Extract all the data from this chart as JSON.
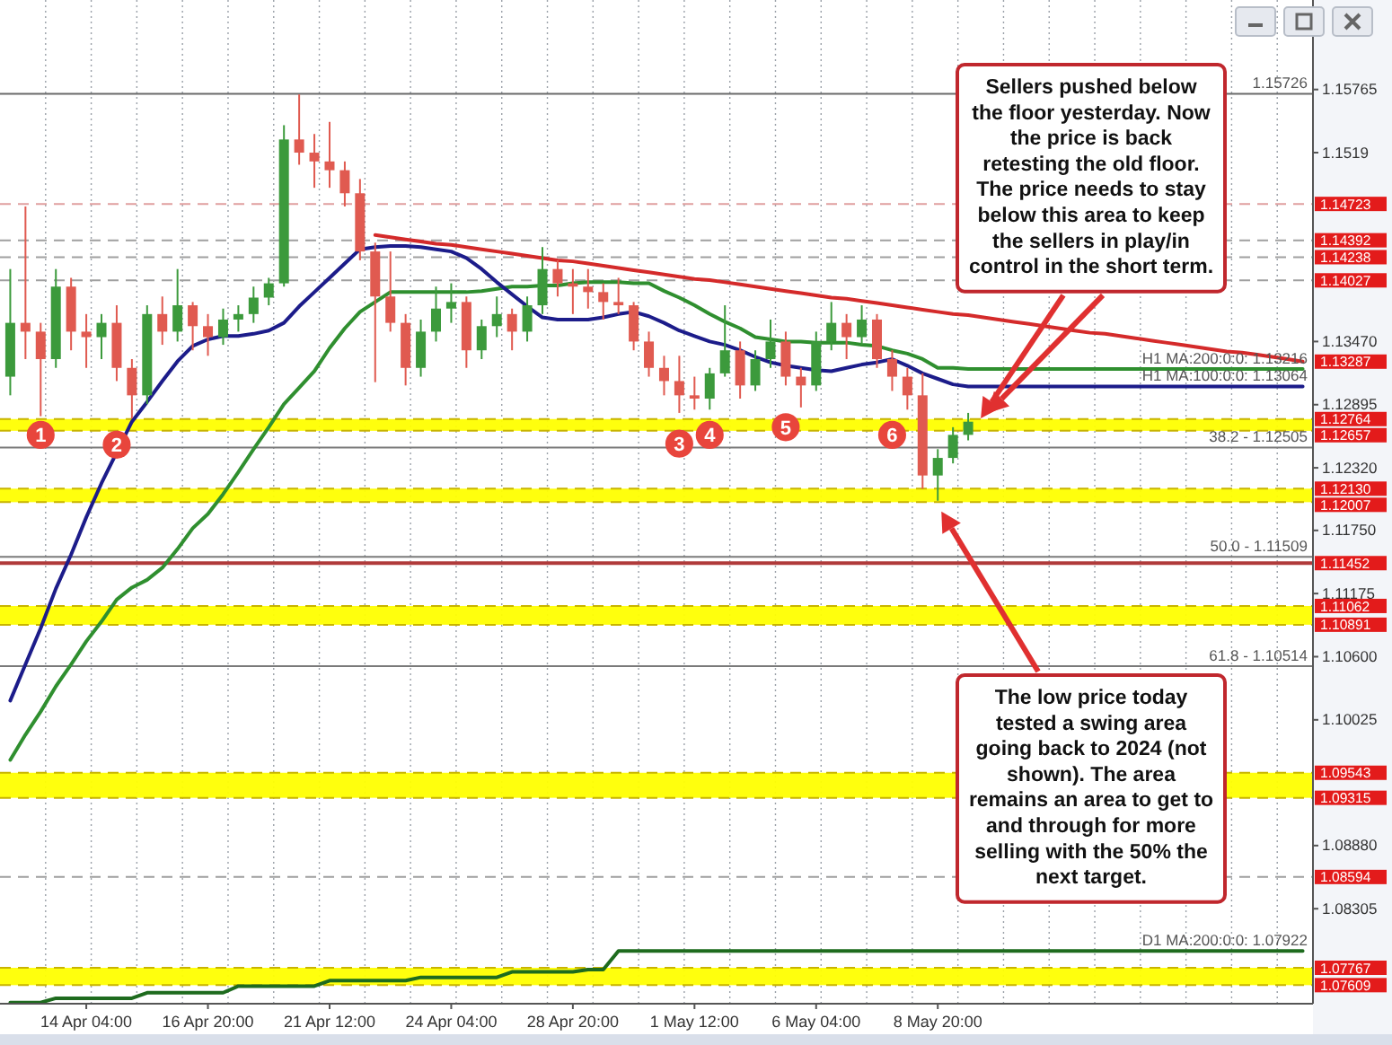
{
  "chart_data": {
    "type": "candlestick",
    "categories": [
      null,
      null,
      null,
      null,
      null,
      "14 Apr 04:00",
      null,
      null,
      null,
      null,
      null,
      null,
      null,
      "16 Apr 20:00",
      null,
      null,
      null,
      null,
      null,
      null,
      null,
      "21 Apr 12:00",
      null,
      null,
      null,
      null,
      null,
      null,
      null,
      "24 Apr 04:00",
      null,
      null,
      null,
      null,
      null,
      null,
      null,
      "28 Apr 20:00",
      null,
      null,
      null,
      null,
      null,
      null,
      null,
      "1 May 12:00",
      null,
      null,
      null,
      null,
      null,
      null,
      null,
      "6 May 04:00",
      null,
      null,
      null,
      null,
      null,
      null,
      null,
      "8 May 20:00",
      null,
      null,
      null,
      null,
      null,
      null,
      null,
      null,
      null,
      null,
      null,
      null,
      null,
      null,
      null,
      null,
      null,
      null,
      null,
      null,
      null,
      null,
      null,
      null
    ],
    "ohlc": [
      [
        1.1315,
        1.1413,
        1.1298,
        1.1364
      ],
      [
        1.1364,
        1.147,
        1.1331,
        1.1356
      ],
      [
        1.1356,
        1.1364,
        1.1279,
        1.1331
      ],
      [
        1.1331,
        1.1413,
        1.1323,
        1.1397
      ],
      [
        1.1397,
        1.1405,
        1.1339,
        1.1356
      ],
      [
        1.1356,
        1.1372,
        1.1323,
        1.1351
      ],
      [
        1.1351,
        1.1372,
        1.1331,
        1.1364
      ],
      [
        1.1364,
        1.138,
        1.1311,
        1.1323
      ],
      [
        1.1323,
        1.1331,
        1.1277,
        1.1298
      ],
      [
        1.1298,
        1.138,
        1.129,
        1.1372
      ],
      [
        1.1372,
        1.1388,
        1.1344,
        1.1356
      ],
      [
        1.1356,
        1.1413,
        1.1347,
        1.138
      ],
      [
        1.138,
        1.1383,
        1.1339,
        1.1361
      ],
      [
        1.1361,
        1.1372,
        1.1334,
        1.1351
      ],
      [
        1.1351,
        1.1377,
        1.1344,
        1.1367
      ],
      [
        1.1367,
        1.138,
        1.1356,
        1.1372
      ],
      [
        1.1372,
        1.1397,
        1.1364,
        1.1387
      ],
      [
        1.1387,
        1.1405,
        1.138,
        1.14
      ],
      [
        1.14,
        1.1544,
        1.1397,
        1.1531
      ],
      [
        1.1531,
        1.1572,
        1.1508,
        1.1519
      ],
      [
        1.1519,
        1.1536,
        1.1487,
        1.1511
      ],
      [
        1.1511,
        1.1547,
        1.1487,
        1.1503
      ],
      [
        1.1503,
        1.1511,
        1.147,
        1.1482
      ],
      [
        1.1482,
        1.1495,
        1.1421,
        1.1429
      ],
      [
        1.1429,
        1.1437,
        1.131,
        1.1388
      ],
      [
        1.1388,
        1.1429,
        1.1356,
        1.1364
      ],
      [
        1.1364,
        1.1372,
        1.1307,
        1.1323
      ],
      [
        1.1323,
        1.1367,
        1.1315,
        1.1356
      ],
      [
        1.1356,
        1.1397,
        1.1347,
        1.1377
      ],
      [
        1.1377,
        1.14,
        1.1364,
        1.1383
      ],
      [
        1.1383,
        1.1388,
        1.1323,
        1.1339
      ],
      [
        1.1339,
        1.1367,
        1.1331,
        1.1361
      ],
      [
        1.1361,
        1.1388,
        1.1351,
        1.1372
      ],
      [
        1.1372,
        1.1377,
        1.1339,
        1.1356
      ],
      [
        1.1356,
        1.1388,
        1.1347,
        1.138
      ],
      [
        1.138,
        1.1433,
        1.1372,
        1.1413
      ],
      [
        1.1413,
        1.1421,
        1.1388,
        1.14
      ],
      [
        1.14,
        1.1413,
        1.1372,
        1.1397
      ],
      [
        1.1397,
        1.1413,
        1.1377,
        1.1392
      ],
      [
        1.1392,
        1.14,
        1.1367,
        1.1383
      ],
      [
        1.1383,
        1.1405,
        1.1372,
        1.138
      ],
      [
        1.138,
        1.1383,
        1.1339,
        1.1347
      ],
      [
        1.1347,
        1.1356,
        1.1315,
        1.1323
      ],
      [
        1.1323,
        1.1334,
        1.1298,
        1.1311
      ],
      [
        1.1311,
        1.1334,
        1.1282,
        1.1298
      ],
      [
        1.1298,
        1.1315,
        1.1285,
        1.1295
      ],
      [
        1.1295,
        1.1323,
        1.1285,
        1.1318
      ],
      [
        1.1318,
        1.138,
        1.1315,
        1.1339
      ],
      [
        1.1339,
        1.1347,
        1.1295,
        1.1307
      ],
      [
        1.1307,
        1.1339,
        1.1302,
        1.1331
      ],
      [
        1.1331,
        1.1367,
        1.1323,
        1.1347
      ],
      [
        1.1347,
        1.1356,
        1.1307,
        1.1315
      ],
      [
        1.1315,
        1.1323,
        1.1287,
        1.1307
      ],
      [
        1.1307,
        1.1356,
        1.1302,
        1.1347
      ],
      [
        1.1347,
        1.1383,
        1.1339,
        1.1364
      ],
      [
        1.1364,
        1.1372,
        1.1331,
        1.1351
      ],
      [
        1.1351,
        1.138,
        1.1344,
        1.1367
      ],
      [
        1.1367,
        1.1372,
        1.1323,
        1.1331
      ],
      [
        1.1331,
        1.1339,
        1.1302,
        1.1315
      ],
      [
        1.1315,
        1.1323,
        1.1285,
        1.1298
      ],
      [
        1.1298,
        1.1318,
        1.1213,
        1.1225
      ],
      [
        1.1225,
        1.1249,
        1.1202,
        1.1241
      ],
      [
        1.1241,
        1.1269,
        1.1236,
        1.1262
      ],
      [
        1.1262,
        1.1282,
        1.1257,
        1.1274
      ],
      null,
      null,
      null,
      null,
      null,
      null,
      null,
      null,
      null,
      null,
      null,
      null,
      null,
      null,
      null,
      null,
      null,
      null,
      null,
      null,
      null,
      null
    ],
    "series": [
      {
        "type": "line",
        "color": "#2f8f2f",
        "values": [
          1.0966,
          1.0989,
          1.101,
          1.1033,
          1.1053,
          1.1074,
          1.1092,
          1.1112,
          1.1123,
          1.113,
          1.1141,
          1.1158,
          1.1177,
          1.119,
          1.1208,
          1.1228,
          1.1249,
          1.1269,
          1.129,
          1.1305,
          1.132,
          1.1341,
          1.1359,
          1.1374,
          1.1383,
          1.1392,
          1.1392,
          1.1392,
          1.1392,
          1.1392,
          1.1392,
          1.1393,
          1.1395,
          1.1397,
          1.1397,
          1.1398,
          1.1398,
          1.14,
          1.1401,
          1.1401,
          1.1401,
          1.14,
          1.14,
          1.1393,
          1.1387,
          1.138,
          1.1372,
          1.1365,
          1.1359,
          1.1351,
          1.1349,
          1.1347,
          1.1347,
          1.1346,
          1.1346,
          1.1346,
          1.1344,
          1.1343,
          1.1339,
          1.1336,
          1.1331,
          1.1323,
          1.1323,
          1.1322,
          1.1322,
          1.1322,
          1.1322,
          1.1322,
          1.1322,
          1.1322,
          1.1322,
          1.1322,
          1.1322,
          1.1322,
          1.1322,
          1.1322,
          1.1322,
          1.1322,
          1.1322,
          1.1322,
          1.1322,
          1.1322,
          1.1322,
          1.1322,
          1.1322,
          1.1322
        ]
      },
      {
        "type": "line",
        "color": "#1c1c8a",
        "values": [
          1.102,
          1.1053,
          1.1086,
          1.1122,
          1.1153,
          1.1187,
          1.1218,
          1.1246,
          1.1274,
          1.1292,
          1.1311,
          1.1329,
          1.1343,
          1.1349,
          1.1352,
          1.1352,
          1.1354,
          1.1357,
          1.1364,
          1.1379,
          1.1392,
          1.1405,
          1.1418,
          1.1431,
          1.1433,
          1.1434,
          1.1434,
          1.1433,
          1.1431,
          1.1429,
          1.1423,
          1.1413,
          1.1401,
          1.139,
          1.1379,
          1.1369,
          1.1367,
          1.1367,
          1.1367,
          1.1369,
          1.1372,
          1.1374,
          1.137,
          1.1364,
          1.1357,
          1.1352,
          1.1347,
          1.1344,
          1.1339,
          1.1333,
          1.1328,
          1.1325,
          1.1323,
          1.1321,
          1.132,
          1.1323,
          1.1326,
          1.1328,
          1.1331,
          1.1325,
          1.1318,
          1.1313,
          1.1308,
          1.1306,
          1.1306,
          1.1306,
          1.1306,
          1.1306,
          1.1306,
          1.1306,
          1.1306,
          1.1306,
          1.1306,
          1.1306,
          1.1306,
          1.1306,
          1.1306,
          1.1306,
          1.1306,
          1.1306,
          1.1306,
          1.1306,
          1.1306,
          1.1306,
          1.1306,
          1.1306
        ]
      },
      {
        "type": "line",
        "color": "#1e6b1e",
        "values": [
          1.0745,
          1.0745,
          1.0745,
          1.0749,
          1.0749,
          1.0749,
          1.0749,
          1.0749,
          1.0749,
          1.0754,
          1.0754,
          1.0754,
          1.0754,
          1.0754,
          1.0754,
          1.076,
          1.076,
          1.076,
          1.076,
          1.076,
          1.076,
          1.0765,
          1.0765,
          1.0765,
          1.0765,
          1.0765,
          1.0765,
          1.0768,
          1.0768,
          1.0768,
          1.0768,
          1.0768,
          1.0768,
          1.0773,
          1.0773,
          1.0773,
          1.0773,
          1.0773,
          1.0775,
          1.0775,
          1.0792,
          1.0792,
          1.0792,
          1.0792,
          1.0792,
          1.0792,
          1.0792,
          1.0792,
          1.0792,
          1.0792,
          1.0792,
          1.0792,
          1.0792,
          1.0792,
          1.0792,
          1.0792,
          1.0792,
          1.0792,
          1.0792,
          1.0792,
          1.0792,
          1.0792,
          1.0792,
          1.0792,
          1.0792,
          1.0792,
          1.0792,
          1.0792,
          1.0792,
          1.0792,
          1.0792,
          1.0792,
          1.0792,
          1.0792,
          1.0792,
          1.0792,
          1.0792,
          1.0792,
          1.0792,
          1.0792,
          1.0792,
          1.0792,
          1.0792,
          1.0792,
          1.0792,
          1.0792
        ]
      },
      {
        "type": "line",
        "color": "#d42a2a",
        "values": [
          null,
          null,
          null,
          null,
          null,
          null,
          null,
          null,
          null,
          null,
          null,
          null,
          null,
          null,
          null,
          null,
          null,
          null,
          null,
          null,
          null,
          null,
          null,
          null,
          1.1444,
          1.1442,
          1.144,
          1.1438,
          1.1436,
          1.1435,
          1.1433,
          1.1431,
          1.1429,
          1.1427,
          1.1425,
          1.1423,
          1.1421,
          1.142,
          1.1418,
          1.1416,
          1.1414,
          1.1412,
          1.141,
          1.1408,
          1.1406,
          1.1404,
          1.1403,
          1.1401,
          1.1399,
          1.1397,
          1.1395,
          1.1393,
          1.1391,
          1.1389,
          1.1387,
          1.1386,
          1.1384,
          1.1382,
          1.138,
          1.1378,
          1.1376,
          1.1374,
          1.1372,
          1.1371,
          1.1369,
          1.1367,
          1.1365,
          1.1363,
          1.1361,
          1.1359,
          1.1357,
          1.1355,
          1.1354,
          1.1352,
          1.135,
          1.1348,
          1.1346,
          1.1344,
          1.1342,
          1.134,
          1.1338,
          1.1337,
          1.1335,
          1.1333,
          1.1331,
          1.13287
        ],
        "value_labels": [
          null,
          null,
          null,
          null,
          null,
          null,
          null,
          null,
          null,
          null,
          null,
          null,
          null,
          null,
          null,
          null,
          null,
          null,
          null,
          null,
          null,
          null,
          null,
          null,
          null,
          null,
          null,
          null,
          null,
          null,
          null,
          null,
          null,
          null,
          null,
          null,
          null,
          null,
          null,
          null,
          null,
          null,
          null,
          null,
          null,
          null,
          null,
          null,
          null,
          null,
          null,
          null,
          null,
          null,
          null,
          null,
          null,
          null,
          null,
          null,
          null,
          null,
          null,
          null,
          null,
          null,
          null,
          null,
          null,
          null,
          null,
          null,
          null,
          null,
          null,
          null,
          null,
          null,
          null,
          null,
          null,
          null,
          null,
          null,
          null,
          "1.13287"
        ]
      },
      {
        "type": "scatter",
        "name": "1",
        "color": "#e8453c",
        "marker": "circle",
        "values": [
          null,
          null,
          1.1262,
          null,
          null,
          null,
          null,
          null,
          null,
          null,
          null,
          null,
          null,
          null,
          null,
          null,
          null,
          null,
          null,
          null,
          null,
          null,
          null,
          null,
          null,
          null,
          null,
          null,
          null,
          null,
          null,
          null,
          null,
          null,
          null,
          null,
          null,
          null,
          null,
          null,
          null,
          null,
          null,
          null,
          null,
          null,
          null,
          null,
          null,
          null,
          null,
          null,
          null,
          null,
          null,
          null,
          null,
          null,
          null,
          null,
          null,
          null,
          null,
          null,
          null,
          null,
          null,
          null,
          null,
          null,
          null,
          null,
          null,
          null,
          null,
          null,
          null,
          null,
          null,
          null,
          null,
          null,
          null,
          null,
          null,
          null
        ]
      },
      {
        "type": "scatter",
        "name": "2",
        "color": "#e8453c",
        "marker": "circle",
        "values": [
          null,
          null,
          null,
          null,
          null,
          null,
          null,
          1.1253,
          null,
          null,
          null,
          null,
          null,
          null,
          null,
          null,
          null,
          null,
          null,
          null,
          null,
          null,
          null,
          null,
          null,
          null,
          null,
          null,
          null,
          null,
          null,
          null,
          null,
          null,
          null,
          null,
          null,
          null,
          null,
          null,
          null,
          null,
          null,
          null,
          null,
          null,
          null,
          null,
          null,
          null,
          null,
          null,
          null,
          null,
          null,
          null,
          null,
          null,
          null,
          null,
          null,
          null,
          null,
          null,
          null,
          null,
          null,
          null,
          null,
          null,
          null,
          null,
          null,
          null,
          null,
          null,
          null,
          null,
          null,
          null,
          null,
          null,
          null,
          null,
          null,
          null
        ]
      },
      {
        "type": "scatter",
        "name": "3",
        "color": "#e8453c",
        "marker": "circle",
        "values": [
          null,
          null,
          null,
          null,
          null,
          null,
          null,
          null,
          null,
          null,
          null,
          null,
          null,
          null,
          null,
          null,
          null,
          null,
          null,
          null,
          null,
          null,
          null,
          null,
          null,
          null,
          null,
          null,
          null,
          null,
          null,
          null,
          null,
          null,
          null,
          null,
          null,
          null,
          null,
          null,
          null,
          null,
          null,
          null,
          1.1254,
          null,
          null,
          null,
          null,
          null,
          null,
          null,
          null,
          null,
          null,
          null,
          null,
          null,
          null,
          null,
          null,
          null,
          null,
          null,
          null,
          null,
          null,
          null,
          null,
          null,
          null,
          null,
          null,
          null,
          null,
          null,
          null,
          null,
          null,
          null,
          null,
          null,
          null,
          null,
          null,
          null
        ]
      },
      {
        "type": "scatter",
        "name": "4",
        "color": "#e8453c",
        "marker": "circle",
        "values": [
          null,
          null,
          null,
          null,
          null,
          null,
          null,
          null,
          null,
          null,
          null,
          null,
          null,
          null,
          null,
          null,
          null,
          null,
          null,
          null,
          null,
          null,
          null,
          null,
          null,
          null,
          null,
          null,
          null,
          null,
          null,
          null,
          null,
          null,
          null,
          null,
          null,
          null,
          null,
          null,
          null,
          null,
          null,
          null,
          null,
          null,
          1.1262,
          null,
          null,
          null,
          null,
          null,
          null,
          null,
          null,
          null,
          null,
          null,
          null,
          null,
          null,
          null,
          null,
          null,
          null,
          null,
          null,
          null,
          null,
          null,
          null,
          null,
          null,
          null,
          null,
          null,
          null,
          null,
          null,
          null,
          null,
          null,
          null,
          null,
          null,
          null
        ]
      },
      {
        "type": "scatter",
        "name": "5",
        "color": "#e8453c",
        "marker": "circle",
        "values": [
          null,
          null,
          null,
          null,
          null,
          null,
          null,
          null,
          null,
          null,
          null,
          null,
          null,
          null,
          null,
          null,
          null,
          null,
          null,
          null,
          null,
          null,
          null,
          null,
          null,
          null,
          null,
          null,
          null,
          null,
          null,
          null,
          null,
          null,
          null,
          null,
          null,
          null,
          null,
          null,
          null,
          null,
          null,
          null,
          null,
          null,
          null,
          null,
          null,
          null,
          null,
          1.1269,
          null,
          null,
          null,
          null,
          null,
          null,
          null,
          null,
          null,
          null,
          null,
          null,
          null,
          null,
          null,
          null,
          null,
          null,
          null,
          null,
          null,
          null,
          null,
          null,
          null,
          null,
          null,
          null,
          null,
          null,
          null,
          null,
          null,
          null
        ]
      },
      {
        "type": "scatter",
        "name": "6",
        "color": "#e8453c",
        "marker": "circle",
        "values": [
          null,
          null,
          null,
          null,
          null,
          null,
          null,
          null,
          null,
          null,
          null,
          null,
          null,
          null,
          null,
          null,
          null,
          null,
          null,
          null,
          null,
          null,
          null,
          null,
          null,
          null,
          null,
          null,
          null,
          null,
          null,
          null,
          null,
          null,
          null,
          null,
          null,
          null,
          null,
          null,
          null,
          null,
          null,
          null,
          null,
          null,
          null,
          null,
          null,
          null,
          null,
          null,
          null,
          null,
          null,
          null,
          null,
          null,
          1.1262,
          null,
          null,
          null,
          null,
          null,
          null,
          null,
          null,
          null,
          null,
          null,
          null,
          null,
          null,
          null,
          null,
          null,
          null,
          null,
          null,
          null,
          null,
          null,
          null,
          null,
          null,
          null
        ]
      }
    ],
    "ylim": [
      1.0744,
      1.1658
    ],
    "yticks": [
      1.15765,
      1.1519,
      {
        "value": 1.1347,
        "label": "1.13470"
      },
      1.12895,
      {
        "value": 1.1232,
        "label": "1.12320"
      },
      {
        "value": 1.1175,
        "label": "1.11750"
      },
      1.11175,
      {
        "value": 1.106,
        "label": "1.10600"
      },
      1.10025,
      {
        "value": 1.0888,
        "label": "1.08880"
      },
      1.08305
    ],
    "grid": "x",
    "bands": [
      {
        "axis": "y",
        "from": 1.12657,
        "to": 1.12764,
        "color": "#ffff00"
      },
      {
        "axis": "y",
        "from": 1.12007,
        "to": 1.1213,
        "color": "#ffff00"
      },
      {
        "axis": "y",
        "from": 1.10891,
        "to": 1.11062,
        "color": "#ffff00"
      },
      {
        "axis": "y",
        "from": 1.09315,
        "to": 1.09543,
        "color": "#ffff00"
      },
      {
        "axis": "y",
        "from": 1.07609,
        "to": 1.07767,
        "color": "#ffff00"
      }
    ],
    "ref_lines": [
      {
        "axis": "y",
        "value": 1.15726,
        "color": "#6a6a6a",
        "line_style": "solid"
      },
      {
        "axis": "y",
        "value": 1.14723,
        "label": "1.14723",
        "color": "#e0a0a0",
        "line_style": "dashed"
      },
      {
        "axis": "y",
        "value": 1.14392,
        "label": "1.14392",
        "color": "#a0a0a0",
        "line_style": "dashed"
      },
      {
        "axis": "y",
        "value": 1.14238,
        "label": "1.14238",
        "color": "#a0a0a0",
        "line_style": "dashed"
      },
      {
        "axis": "y",
        "value": 1.14027,
        "label": "1.14027",
        "color": "#a0a0a0",
        "line_style": "dashed"
      },
      {
        "axis": "y",
        "value": 1.12764,
        "label": "1.12764",
        "color": "#c8b400",
        "line_style": "dashed"
      },
      {
        "axis": "y",
        "value": 1.12657,
        "label": "1.12657",
        "color": "#c8b400",
        "line_style": "dashed"
      },
      {
        "axis": "y",
        "value": 1.12505,
        "color": "#7a7a7a",
        "line_style": "solid"
      },
      {
        "axis": "y",
        "value": 1.1213,
        "label": "1.12130",
        "color": "#c8b400",
        "line_style": "dashed"
      },
      {
        "axis": "y",
        "value": 1.12007,
        "label": "1.12007",
        "color": "#c8b400",
        "line_style": "dashed"
      },
      {
        "axis": "y",
        "value": 1.11509,
        "color": "#7a7a7a",
        "line_style": "solid"
      },
      {
        "axis": "y",
        "value": 1.11452,
        "label": "1.11452",
        "color": "#b03a3a",
        "line_style": "solid"
      },
      {
        "axis": "y",
        "value": 1.11062,
        "label": "1.11062",
        "color": "#c8b400",
        "line_style": "dashed"
      },
      {
        "axis": "y",
        "value": 1.10891,
        "label": "1.10891",
        "color": "#c8b400",
        "line_style": "dashed"
      },
      {
        "axis": "y",
        "value": 1.10514,
        "color": "#7a7a7a",
        "line_style": "solid"
      },
      {
        "axis": "y",
        "value": 1.09543,
        "label": "1.09543",
        "color": "#c8b400",
        "line_style": "dashed"
      },
      {
        "axis": "y",
        "value": 1.09315,
        "label": "1.09315",
        "color": "#c8b400",
        "line_style": "dashed"
      },
      {
        "axis": "y",
        "value": 1.08594,
        "label": "1.08594",
        "color": "#a0a0a0",
        "line_style": "dashed"
      },
      {
        "axis": "y",
        "value": 1.07767,
        "label": "1.07767",
        "color": "#c8b400",
        "line_style": "dashed"
      },
      {
        "axis": "y",
        "value": 1.07609,
        "label": "1.07609",
        "color": "#c8b400",
        "line_style": "dashed"
      }
    ],
    "annotations": [
      "Sellers pushed below the floor yesterday. Now the price is back retesting the old floor.  The price needs to stay below this area to keep the sellers in play/in control in the short term.",
      "The low price today tested a swing area going back to 2024 (not shown).  The area remains an area to get to and through for more selling with the 50% the next target.",
      {
        "text": "1.15726",
        "y": 1.15726
      },
      {
        "text": "H1 MA:200:0:0: 1.13216",
        "y": 1.13216
      },
      {
        "text": "H1 MA:100:0:0: 1.13064",
        "y": 1.13064
      },
      {
        "text": "38.2 - 1.12505",
        "y": 1.12505
      },
      {
        "text": "50.0 - 1.11509",
        "y": 1.11509
      },
      {
        "text": "61.8 - 1.10514",
        "y": 1.10514
      },
      {
        "text": "D1 MA:200:0:0: 1.07922",
        "y": 1.07922
      }
    ]
  }
}
